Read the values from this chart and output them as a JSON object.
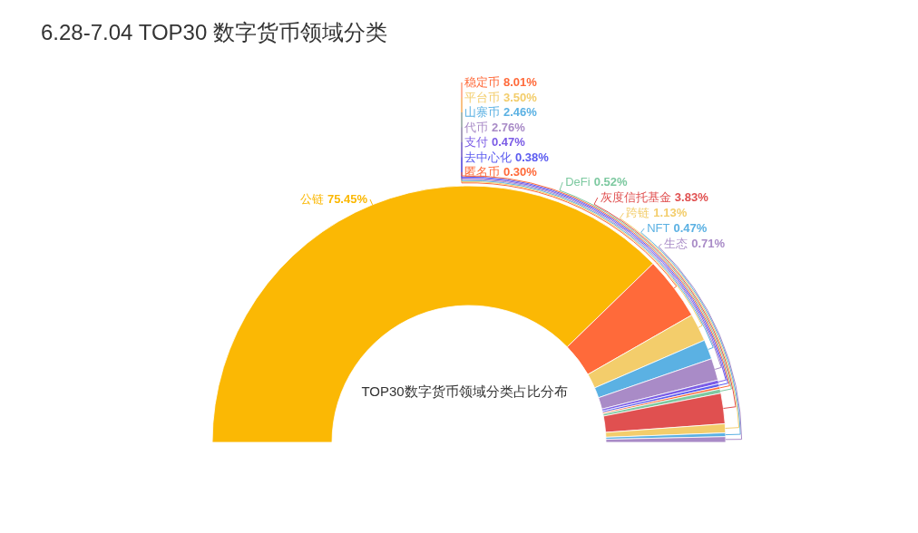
{
  "chart_data": {
    "type": "donut",
    "title": "6.28-7.04  TOP30 数字货币领域分类",
    "categories": [
      "公链",
      "稳定币",
      "平台币",
      "山寨币",
      "代币",
      "支付",
      "去中心化",
      "匿名币",
      "DeFi",
      "灰度信托基金",
      "跨链",
      "NFT",
      "生态"
    ],
    "values": [
      75.45,
      8.01,
      3.5,
      2.46,
      2.76,
      0.47,
      0.38,
      0.3,
      0.52,
      3.83,
      1.13,
      0.47,
      0.71
    ],
    "value_labels": [
      "75.45%",
      "8.01%",
      "3.50%",
      "2.46%",
      "2.76%",
      "0.47%",
      "0.38%",
      "0.30%",
      "0.52%",
      "3.83%",
      "1.13%",
      "0.47%",
      "0.71%"
    ],
    "colors": [
      "#fbb804",
      "#ff6a3a",
      "#f3cd6b",
      "#5bb1e3",
      "#a98bc7",
      "#7b5ce6",
      "#5b5bf0",
      "#ff6a3a",
      "#7dc9a0",
      "#e05050",
      "#f3cd6b",
      "#5bb1e3",
      "#a98bc7"
    ],
    "annotations": [
      "TOP30数字货币领域分类占比分布"
    ]
  }
}
